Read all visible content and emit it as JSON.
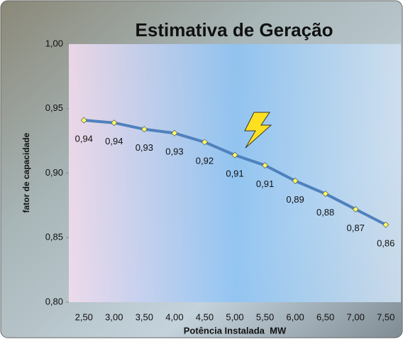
{
  "chart_data": {
    "type": "line",
    "title": "Estimativa de Geração",
    "x_label": "Potência Instalada  MW",
    "y_label": "fator de capacidade",
    "categories": [
      "2,50",
      "3,00",
      "3,50",
      "4,00",
      "4,50",
      "5,00",
      "5,50",
      "6,00",
      "6,50",
      "7,00",
      "7,50"
    ],
    "values": [
      0.941,
      0.939,
      0.934,
      0.931,
      0.924,
      0.914,
      0.906,
      0.894,
      0.884,
      0.872,
      0.86
    ],
    "value_labels": [
      "0,94",
      "0,94",
      "0,93",
      "0,93",
      "0,92",
      "0,91",
      "0,91",
      "0,89",
      "0,88",
      "0,87",
      "0,86"
    ],
    "color": "#4f81bd",
    "marker_color": "#ffff66",
    "ylim": [
      0.8,
      1.0
    ],
    "yticks": [
      {
        "value": 0.8,
        "label": "0,80"
      },
      {
        "value": 0.85,
        "label": "0,85"
      },
      {
        "value": 0.9,
        "label": "0,90"
      },
      {
        "value": 0.95,
        "label": "0,95"
      },
      {
        "value": 1.0,
        "label": "1,00"
      }
    ]
  }
}
